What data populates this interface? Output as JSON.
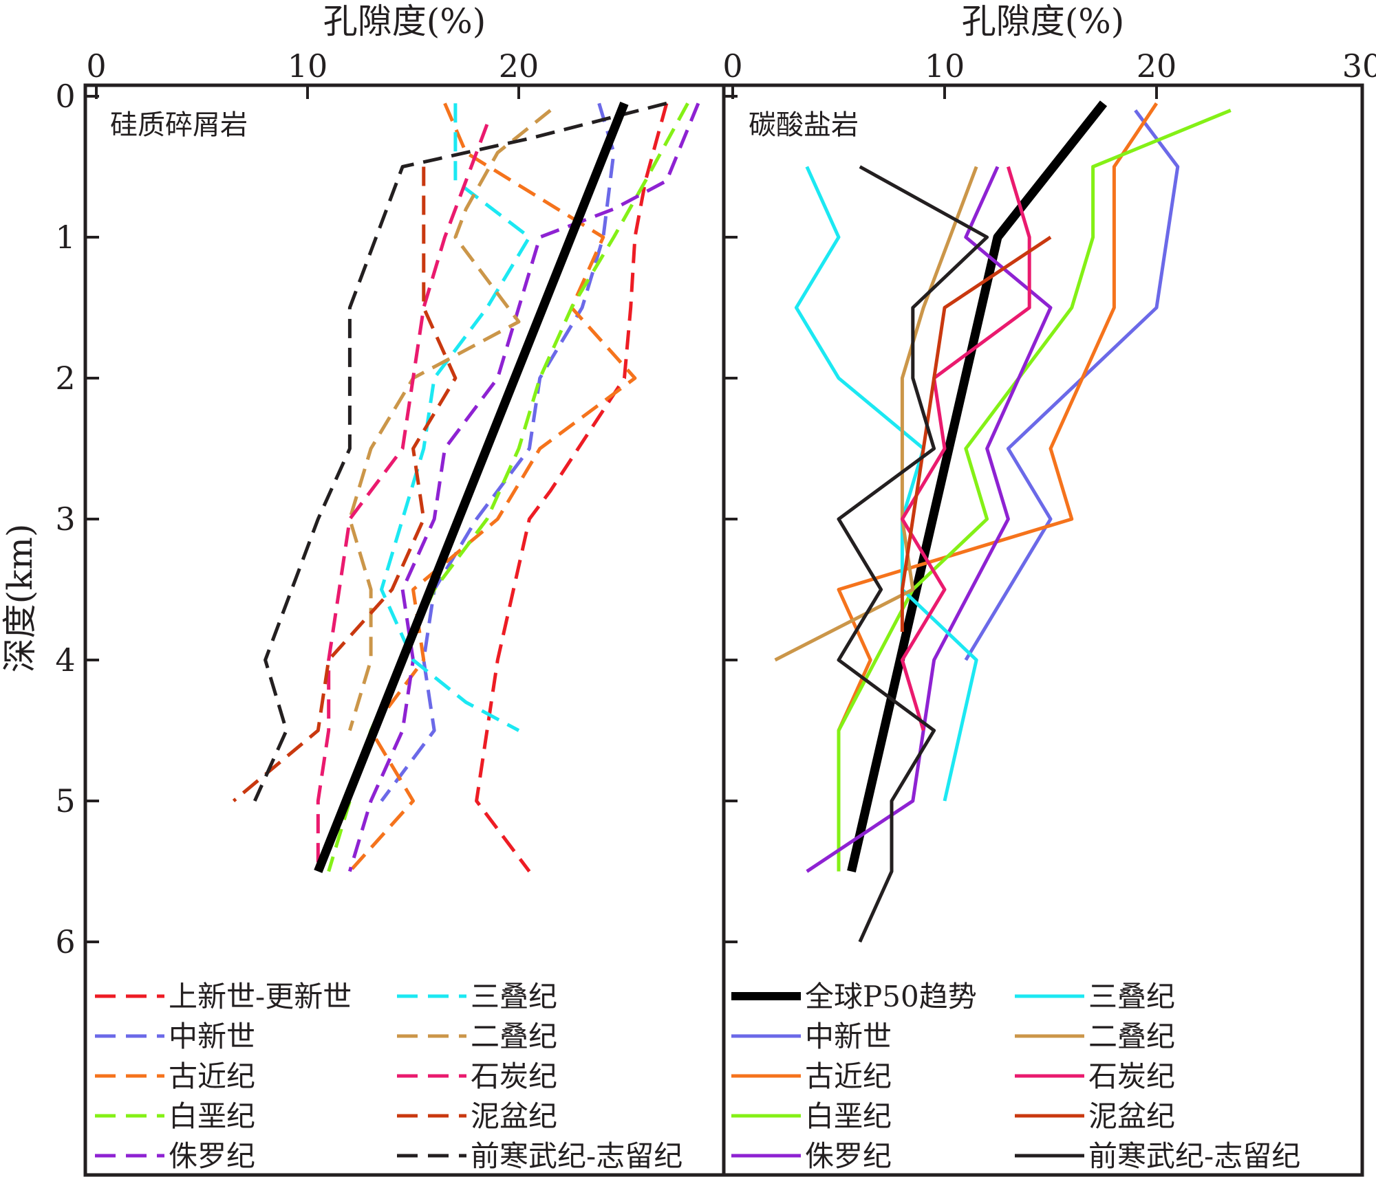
{
  "chart_data": [
    {
      "type": "line",
      "panel_title": "硅质碎屑岩",
      "xlabel": "孔隙度(%)",
      "ylabel": "深度(km)",
      "xlim": [
        0,
        30
      ],
      "ylim": [
        0,
        6.5
      ],
      "x_axis_position": "top",
      "y_inverted": true,
      "xticks": [
        "0",
        "10",
        "20"
      ],
      "yticks": [
        "0",
        "1",
        "2",
        "3",
        "4",
        "5",
        "6"
      ],
      "line_style": "dashed",
      "legend_position": "bottom",
      "series": [
        {
          "name": "上新世-更新世",
          "color": "#ed1c24",
          "points": [
            [
              27.0,
              0.05
            ],
            [
              26.0,
              0.6
            ],
            [
              25.5,
              1.0
            ],
            [
              25.3,
              1.5
            ],
            [
              25.0,
              2.0
            ],
            [
              21.5,
              2.8
            ],
            [
              20.5,
              3.0
            ],
            [
              19.0,
              4.0
            ],
            [
              18.0,
              5.0
            ],
            [
              18.5,
              5.1
            ],
            [
              20.5,
              5.5
            ]
          ]
        },
        {
          "name": "中新世",
          "color": "#6b69e8",
          "points": [
            [
              23.8,
              0.05
            ],
            [
              24.5,
              0.4
            ],
            [
              24.0,
              1.0
            ],
            [
              23.0,
              1.5
            ],
            [
              21.0,
              2.0
            ],
            [
              20.5,
              2.5
            ],
            [
              18.0,
              3.0
            ],
            [
              16.0,
              3.5
            ],
            [
              15.5,
              4.0
            ],
            [
              16.0,
              4.5
            ],
            [
              13.5,
              5.0
            ]
          ]
        },
        {
          "name": "古近纪",
          "color": "#f5731c",
          "points": [
            [
              16.5,
              0.05
            ],
            [
              17.5,
              0.4
            ],
            [
              24.0,
              1.0
            ],
            [
              22.5,
              1.5
            ],
            [
              25.5,
              2.0
            ],
            [
              21.0,
              2.5
            ],
            [
              19.0,
              3.0
            ],
            [
              15.0,
              3.5
            ],
            [
              15.5,
              4.0
            ],
            [
              13.0,
              4.5
            ],
            [
              15.0,
              5.0
            ],
            [
              12.0,
              5.5
            ]
          ]
        },
        {
          "name": "白垩纪",
          "color": "#84f016",
          "points": [
            [
              28.0,
              0.05
            ],
            [
              26.0,
              0.6
            ],
            [
              24.5,
              1.0
            ],
            [
              22.5,
              1.5
            ],
            [
              21.0,
              2.0
            ],
            [
              20.0,
              2.5
            ],
            [
              18.5,
              3.0
            ],
            [
              16.0,
              3.5
            ],
            [
              14.5,
              4.0
            ],
            [
              13.0,
              4.5
            ],
            [
              12.0,
              5.0
            ],
            [
              11.0,
              5.5
            ]
          ]
        },
        {
          "name": "侏罗纪",
          "color": "#8e22d2",
          "points": [
            [
              28.5,
              0.05
            ],
            [
              27.0,
              0.6
            ],
            [
              24.5,
              0.8
            ],
            [
              21.0,
              1.0
            ],
            [
              20.0,
              1.5
            ],
            [
              19.0,
              2.0
            ],
            [
              16.5,
              2.5
            ],
            [
              16.0,
              3.0
            ],
            [
              14.5,
              3.5
            ],
            [
              15.0,
              4.0
            ],
            [
              14.5,
              4.5
            ],
            [
              13.0,
              5.0
            ],
            [
              12.0,
              5.5
            ]
          ]
        },
        {
          "name": "三叠纪",
          "color": "#1ce8f2",
          "points": [
            [
              17.0,
              0.05
            ],
            [
              17.0,
              0.4
            ],
            [
              17.0,
              0.6
            ],
            [
              20.5,
              1.0
            ],
            [
              18.5,
              1.5
            ],
            [
              16.0,
              2.0
            ],
            [
              15.5,
              2.5
            ],
            [
              14.5,
              3.0
            ],
            [
              13.5,
              3.5
            ],
            [
              15.0,
              4.0
            ],
            [
              17.5,
              4.3
            ],
            [
              20.0,
              4.5
            ]
          ]
        },
        {
          "name": "二叠纪",
          "color": "#cb9649",
          "points": [
            [
              21.5,
              0.1
            ],
            [
              19.0,
              0.4
            ],
            [
              17.5,
              0.8
            ],
            [
              17.0,
              1.0
            ],
            [
              19.5,
              1.5
            ],
            [
              20.0,
              1.6
            ],
            [
              15.0,
              2.0
            ],
            [
              13.0,
              2.5
            ],
            [
              12.0,
              3.0
            ],
            [
              13.0,
              3.5
            ],
            [
              13.0,
              4.0
            ],
            [
              12.0,
              4.5
            ]
          ]
        },
        {
          "name": "石炭纪",
          "color": "#ea1a6e",
          "points": [
            [
              18.5,
              0.2
            ],
            [
              17.5,
              0.6
            ],
            [
              16.5,
              1.0
            ],
            [
              15.5,
              1.5
            ],
            [
              15.0,
              2.0
            ],
            [
              14.5,
              2.5
            ],
            [
              12.0,
              3.0
            ],
            [
              11.5,
              3.5
            ],
            [
              11.0,
              4.0
            ],
            [
              11.0,
              4.5
            ],
            [
              10.5,
              5.0
            ],
            [
              10.5,
              5.5
            ]
          ]
        },
        {
          "name": "泥盆纪",
          "color": "#c9380f",
          "points": [
            [
              15.5,
              0.5
            ],
            [
              15.5,
              1.0
            ],
            [
              15.5,
              1.5
            ],
            [
              17.0,
              2.0
            ],
            [
              15.0,
              2.5
            ],
            [
              15.5,
              3.0
            ],
            [
              14.0,
              3.5
            ],
            [
              11.0,
              4.0
            ],
            [
              10.5,
              4.5
            ],
            [
              6.5,
              5.0
            ]
          ]
        },
        {
          "name": "前寒武纪-志留纪",
          "color": "#231f20",
          "points": [
            [
              27.0,
              0.05
            ],
            [
              20.5,
              0.3
            ],
            [
              14.5,
              0.5
            ],
            [
              12.0,
              1.5
            ],
            [
              12.0,
              2.5
            ],
            [
              10.5,
              3.0
            ],
            [
              8.0,
              4.0
            ],
            [
              9.0,
              4.5
            ],
            [
              7.5,
              5.0
            ]
          ]
        }
      ],
      "trend": {
        "name": "全球P50趋势",
        "color": "#000000",
        "points": [
          [
            25.0,
            0.05
          ],
          [
            10.5,
            5.5
          ]
        ]
      }
    },
    {
      "type": "line",
      "panel_title": "碳酸盐岩",
      "xlabel": "孔隙度(%)",
      "xlim": [
        0,
        30
      ],
      "ylim": [
        0,
        6.5
      ],
      "x_axis_position": "top",
      "y_inverted": true,
      "xticks": [
        "0",
        "10",
        "20",
        "30"
      ],
      "line_style": "solid",
      "legend_position": "bottom",
      "series": [
        {
          "name": "全球P50趋势",
          "color": "#000000",
          "points": [
            [
              17.5,
              0.05
            ],
            [
              12.5,
              1.0
            ],
            [
              5.6,
              5.5
            ]
          ]
        },
        {
          "name": "中新世",
          "color": "#6b69e8",
          "points": [
            [
              19.0,
              0.1
            ],
            [
              21.0,
              0.5
            ],
            [
              20.0,
              1.5
            ],
            [
              13.0,
              2.5
            ],
            [
              15.0,
              3.0
            ],
            [
              11.0,
              4.0
            ]
          ]
        },
        {
          "name": "古近纪",
          "color": "#f5731c",
          "points": [
            [
              20.0,
              0.05
            ],
            [
              18.0,
              0.5
            ],
            [
              18.0,
              1.5
            ],
            [
              15.0,
              2.5
            ],
            [
              16.0,
              3.0
            ],
            [
              5.0,
              3.5
            ],
            [
              6.5,
              4.0
            ],
            [
              5.0,
              4.5
            ]
          ]
        },
        {
          "name": "白垩纪",
          "color": "#84f016",
          "points": [
            [
              23.5,
              0.1
            ],
            [
              17.0,
              0.5
            ],
            [
              17.0,
              1.0
            ],
            [
              16.0,
              1.5
            ],
            [
              11.0,
              2.5
            ],
            [
              12.0,
              3.0
            ],
            [
              8.5,
              3.5
            ],
            [
              5.0,
              4.5
            ],
            [
              5.0,
              5.0
            ],
            [
              5.0,
              5.5
            ]
          ]
        },
        {
          "name": "侏罗纪",
          "color": "#8e22d2",
          "points": [
            [
              12.5,
              0.5
            ],
            [
              11.0,
              1.0
            ],
            [
              15.0,
              1.5
            ],
            [
              12.0,
              2.5
            ],
            [
              13.0,
              3.0
            ],
            [
              9.5,
              4.0
            ],
            [
              9.0,
              4.5
            ],
            [
              8.5,
              5.0
            ],
            [
              3.5,
              5.5
            ]
          ]
        },
        {
          "name": "三叠纪",
          "color": "#1ce8f2",
          "points": [
            [
              3.5,
              0.5
            ],
            [
              5.0,
              1.0
            ],
            [
              3.0,
              1.5
            ],
            [
              5.0,
              2.0
            ],
            [
              9.0,
              2.5
            ],
            [
              8.0,
              3.0
            ],
            [
              8.0,
              3.5
            ],
            [
              11.5,
              4.0
            ],
            [
              10.0,
              5.0
            ]
          ]
        },
        {
          "name": "二叠纪",
          "color": "#cb9649",
          "points": [
            [
              11.5,
              0.5
            ],
            [
              9.0,
              1.5
            ],
            [
              8.0,
              2.0
            ],
            [
              8.0,
              3.0
            ],
            [
              8.5,
              3.5
            ],
            [
              2.0,
              4.0
            ]
          ]
        },
        {
          "name": "石炭纪",
          "color": "#ea1a6e",
          "points": [
            [
              13.0,
              0.5
            ],
            [
              14.0,
              1.0
            ],
            [
              14.0,
              1.5
            ],
            [
              9.5,
              2.0
            ],
            [
              10.0,
              2.5
            ],
            [
              8.0,
              3.0
            ],
            [
              10.0,
              3.5
            ],
            [
              8.0,
              4.0
            ],
            [
              9.0,
              4.5
            ]
          ]
        },
        {
          "name": "泥盆纪",
          "color": "#c9380f",
          "points": [
            [
              15.0,
              1.0
            ],
            [
              10.0,
              1.5
            ],
            [
              9.0,
              2.5
            ],
            [
              8.5,
              3.0
            ],
            [
              8.0,
              3.5
            ],
            [
              8.0,
              3.8
            ]
          ]
        },
        {
          "name": "前寒武纪-志留纪",
          "color": "#231f20",
          "points": [
            [
              6.0,
              0.5
            ],
            [
              12.0,
              1.0
            ],
            [
              8.5,
              1.5
            ],
            [
              8.5,
              2.0
            ],
            [
              9.5,
              2.5
            ],
            [
              5.0,
              3.0
            ],
            [
              7.0,
              3.5
            ],
            [
              5.0,
              4.0
            ],
            [
              9.5,
              4.5
            ],
            [
              7.5,
              5.0
            ],
            [
              7.5,
              5.5
            ],
            [
              6.0,
              6.0
            ]
          ]
        }
      ]
    }
  ]
}
